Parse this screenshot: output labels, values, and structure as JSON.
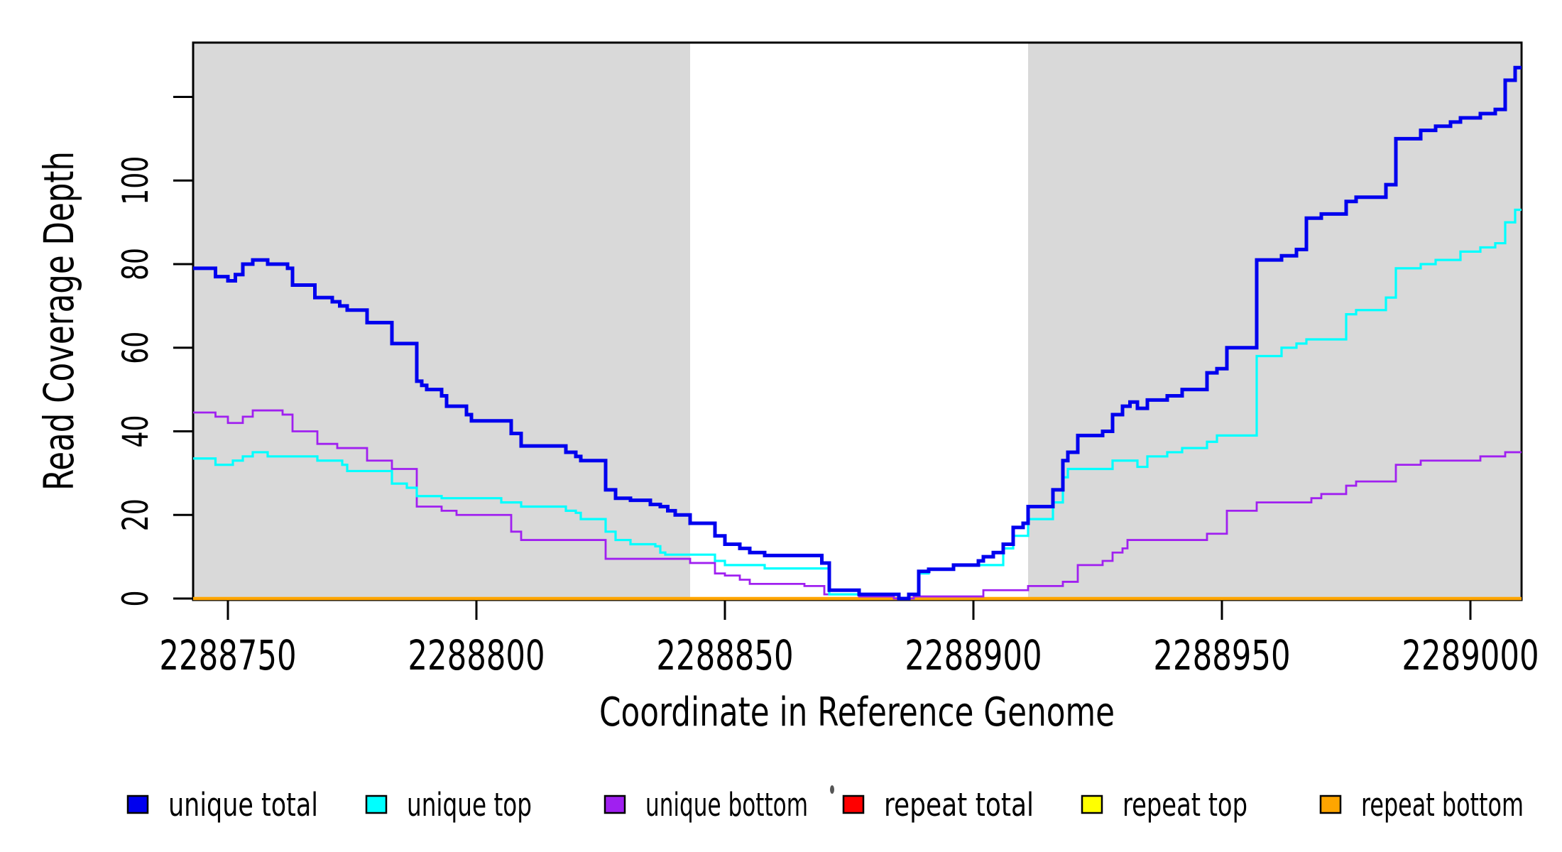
{
  "figure": {
    "background": "#ffffff",
    "shade_color": "#d9d9d9",
    "axis_color": "#000000"
  },
  "chart_data": {
    "type": "line",
    "step": "after",
    "title": "",
    "xlabel": "Coordinate in Reference Genome",
    "ylabel": "Read Coverage Depth",
    "xlim": [
      2288743,
      2289010
    ],
    "ylim": [
      0,
      133
    ],
    "grid": false,
    "x_ticks": [
      {
        "v": 2288750,
        "label": "2288750"
      },
      {
        "v": 2288800,
        "label": "2288800"
      },
      {
        "v": 2288850,
        "label": "2288850"
      },
      {
        "v": 2288900,
        "label": "2288900"
      },
      {
        "v": 2288950,
        "label": "2288950"
      },
      {
        "v": 2289000,
        "label": "2289000"
      }
    ],
    "y_ticks": [
      {
        "v": 0,
        "label": "0"
      },
      {
        "v": 20,
        "label": "20"
      },
      {
        "v": 40,
        "label": "40"
      },
      {
        "v": 60,
        "label": "60"
      },
      {
        "v": 80,
        "label": "80"
      },
      {
        "v": 100,
        "label": "100"
      },
      {
        "v": 120,
        "label": ""
      }
    ],
    "shaded_regions": [
      {
        "x1": 2288743,
        "x2": 2288843
      },
      {
        "x1": 2288911,
        "x2": 2289010
      }
    ],
    "series": [
      {
        "name": "repeat total",
        "color": "#ff0000",
        "width": 2.2,
        "points": [
          [
            2288743,
            0
          ]
        ]
      },
      {
        "name": "repeat top",
        "color": "#ffff00",
        "width": 2.2,
        "points": [
          [
            2288743,
            0
          ]
        ]
      },
      {
        "name": "repeat bottom",
        "color": "#ffa500",
        "width": 4.5,
        "points": [
          [
            2288743,
            0
          ]
        ]
      },
      {
        "name": "unique bottom",
        "color": "#a020f0",
        "width": 2.8,
        "points": [
          [
            2288743,
            44.5
          ],
          [
            2288747.5,
            43.5
          ],
          [
            2288750,
            42
          ],
          [
            2288753,
            43.5
          ],
          [
            2288755,
            45
          ],
          [
            2288761,
            44
          ],
          [
            2288763,
            40
          ],
          [
            2288768,
            37
          ],
          [
            2288772,
            36
          ],
          [
            2288778,
            33
          ],
          [
            2288783,
            31
          ],
          [
            2288788,
            22
          ],
          [
            2288793,
            21
          ],
          [
            2288796,
            20
          ],
          [
            2288807,
            16
          ],
          [
            2288809,
            14
          ],
          [
            2288826,
            9.5
          ],
          [
            2288843,
            8.5
          ],
          [
            2288848,
            6
          ],
          [
            2288850,
            5.5
          ],
          [
            2288853,
            4.5
          ],
          [
            2288855,
            3.5
          ],
          [
            2288866,
            3
          ],
          [
            2288870,
            1
          ],
          [
            2288877,
            0.5
          ],
          [
            2288884,
            0
          ],
          [
            2288888,
            0.5
          ],
          [
            2288902,
            2
          ],
          [
            2288911,
            3
          ],
          [
            2288918,
            4
          ],
          [
            2288921,
            8
          ],
          [
            2288926,
            9
          ],
          [
            2288928,
            11
          ],
          [
            2288930,
            12
          ],
          [
            2288931,
            14
          ],
          [
            2288947,
            15.5
          ],
          [
            2288951,
            21
          ],
          [
            2288957,
            23
          ],
          [
            2288968,
            24
          ],
          [
            2288970,
            25
          ],
          [
            2288975,
            27
          ],
          [
            2288977,
            28
          ],
          [
            2288985,
            32
          ],
          [
            2288990,
            33
          ],
          [
            2289002,
            34
          ],
          [
            2289007,
            35
          ]
        ]
      },
      {
        "name": "unique top",
        "color": "#00ffff",
        "width": 3.2,
        "points": [
          [
            2288743,
            33.5
          ],
          [
            2288747.5,
            32
          ],
          [
            2288751,
            33
          ],
          [
            2288753,
            34
          ],
          [
            2288755,
            35
          ],
          [
            2288758,
            34
          ],
          [
            2288768,
            33
          ],
          [
            2288773,
            32
          ],
          [
            2288774,
            30.5
          ],
          [
            2288783,
            27.5
          ],
          [
            2288786,
            26.5
          ],
          [
            2288788,
            24.5
          ],
          [
            2288793,
            24
          ],
          [
            2288805,
            23
          ],
          [
            2288809,
            22
          ],
          [
            2288818,
            21
          ],
          [
            2288820,
            20.5
          ],
          [
            2288821,
            19
          ],
          [
            2288826,
            16
          ],
          [
            2288828,
            14
          ],
          [
            2288831,
            13
          ],
          [
            2288836,
            12.5
          ],
          [
            2288837,
            11
          ],
          [
            2288838,
            10.5
          ],
          [
            2288848,
            9
          ],
          [
            2288850,
            8
          ],
          [
            2288858,
            7.2
          ],
          [
            2288871,
            1
          ],
          [
            2288885,
            0
          ],
          [
            2288887,
            1
          ],
          [
            2288889,
            6
          ],
          [
            2288891,
            7
          ],
          [
            2288896,
            8
          ],
          [
            2288906,
            12
          ],
          [
            2288908,
            15
          ],
          [
            2288911,
            19
          ],
          [
            2288916,
            23
          ],
          [
            2288918,
            29
          ],
          [
            2288919,
            31
          ],
          [
            2288928,
            33
          ],
          [
            2288933,
            31.5
          ],
          [
            2288935,
            34
          ],
          [
            2288939,
            35
          ],
          [
            2288942,
            36
          ],
          [
            2288947,
            37.5
          ],
          [
            2288949,
            39
          ],
          [
            2288957,
            58
          ],
          [
            2288962,
            60
          ],
          [
            2288965,
            61
          ],
          [
            2288967,
            62
          ],
          [
            2288975,
            68
          ],
          [
            2288977,
            69
          ],
          [
            2288983,
            72
          ],
          [
            2288985,
            79
          ],
          [
            2288990,
            80
          ],
          [
            2288993,
            81
          ],
          [
            2288998,
            83
          ],
          [
            2289002,
            84
          ],
          [
            2289005,
            85
          ],
          [
            2289007,
            90
          ],
          [
            2289009,
            93
          ]
        ]
      },
      {
        "name": "unique total",
        "color": "#0000ee",
        "width": 5,
        "points": [
          [
            2288743,
            79
          ],
          [
            2288747.5,
            77
          ],
          [
            2288750,
            76
          ],
          [
            2288751.5,
            77.5
          ],
          [
            2288753,
            80
          ],
          [
            2288755,
            81
          ],
          [
            2288758,
            80
          ],
          [
            2288762,
            79
          ],
          [
            2288763,
            75
          ],
          [
            2288767.5,
            72
          ],
          [
            2288771,
            71
          ],
          [
            2288772.5,
            70
          ],
          [
            2288774,
            69
          ],
          [
            2288778,
            66
          ],
          [
            2288783,
            61
          ],
          [
            2288788,
            52
          ],
          [
            2288789,
            51
          ],
          [
            2288790,
            50
          ],
          [
            2288793,
            48.5
          ],
          [
            2288794,
            46
          ],
          [
            2288798,
            44
          ],
          [
            2288799,
            42.5
          ],
          [
            2288807,
            39.5
          ],
          [
            2288809,
            36.5
          ],
          [
            2288818,
            35
          ],
          [
            2288820,
            34
          ],
          [
            2288821,
            33
          ],
          [
            2288826,
            26
          ],
          [
            2288828,
            24
          ],
          [
            2288831,
            23.5
          ],
          [
            2288835,
            22.5
          ],
          [
            2288837,
            22
          ],
          [
            2288838.5,
            21
          ],
          [
            2288840,
            20
          ],
          [
            2288843,
            18
          ],
          [
            2288848,
            15
          ],
          [
            2288850,
            13
          ],
          [
            2288853,
            12
          ],
          [
            2288855,
            11
          ],
          [
            2288858,
            10.3
          ],
          [
            2288869.5,
            8.5
          ],
          [
            2288871,
            2
          ],
          [
            2288877,
            1
          ],
          [
            2288885,
            0
          ],
          [
            2288887,
            1
          ],
          [
            2288889,
            6.5
          ],
          [
            2288891,
            7
          ],
          [
            2288896,
            8
          ],
          [
            2288901,
            9
          ],
          [
            2288902,
            10
          ],
          [
            2288904,
            11
          ],
          [
            2288906,
            13
          ],
          [
            2288908,
            17
          ],
          [
            2288910,
            18
          ],
          [
            2288911,
            22
          ],
          [
            2288916,
            26
          ],
          [
            2288918,
            33
          ],
          [
            2288919,
            35
          ],
          [
            2288921,
            39
          ],
          [
            2288926,
            40
          ],
          [
            2288928,
            44
          ],
          [
            2288930,
            46
          ],
          [
            2288931.5,
            47
          ],
          [
            2288933,
            45.5
          ],
          [
            2288935,
            47.5
          ],
          [
            2288939,
            48.5
          ],
          [
            2288942,
            50
          ],
          [
            2288947,
            54
          ],
          [
            2288949,
            55
          ],
          [
            2288951,
            60
          ],
          [
            2288957,
            81
          ],
          [
            2288962,
            82
          ],
          [
            2288965,
            83.5
          ],
          [
            2288967,
            91
          ],
          [
            2288970,
            92
          ],
          [
            2288975,
            95
          ],
          [
            2288977,
            96
          ],
          [
            2288983,
            99
          ],
          [
            2288985,
            110
          ],
          [
            2288990,
            112
          ],
          [
            2288993,
            113
          ],
          [
            2288996,
            114
          ],
          [
            2288998,
            115
          ],
          [
            2289002,
            116
          ],
          [
            2289005,
            117
          ],
          [
            2289007,
            124
          ],
          [
            2289009,
            127
          ]
        ]
      }
    ],
    "legend": {
      "position": "bottom",
      "items": [
        {
          "label": "unique total",
          "color": "#0000ee"
        },
        {
          "label": "unique top",
          "color": "#00ffff"
        },
        {
          "label": "unique bottom",
          "color": "#a020f0"
        },
        {
          "label": "repeat total",
          "color": "#ff0000"
        },
        {
          "label": "repeat top",
          "color": "#ffff00"
        },
        {
          "label": "repeat bottom",
          "color": "#ffa500"
        }
      ]
    }
  }
}
